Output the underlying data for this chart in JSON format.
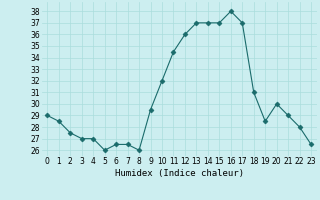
{
  "x": [
    0,
    1,
    2,
    3,
    4,
    5,
    6,
    7,
    8,
    9,
    10,
    11,
    12,
    13,
    14,
    15,
    16,
    17,
    18,
    19,
    20,
    21,
    22,
    23
  ],
  "y": [
    29,
    28.5,
    27.5,
    27,
    27,
    26,
    26.5,
    26.5,
    26,
    29.5,
    32,
    34.5,
    36,
    37,
    37,
    37,
    38,
    37,
    31,
    28.5,
    30,
    29,
    28,
    26.5
  ],
  "xlabel": "Humidex (Indice chaleur)",
  "ylim": [
    25.5,
    38.8
  ],
  "xlim": [
    -0.5,
    23.5
  ],
  "yticks": [
    26,
    27,
    28,
    29,
    30,
    31,
    32,
    33,
    34,
    35,
    36,
    37,
    38
  ],
  "xticks": [
    0,
    1,
    2,
    3,
    4,
    5,
    6,
    7,
    8,
    9,
    10,
    11,
    12,
    13,
    14,
    15,
    16,
    17,
    18,
    19,
    20,
    21,
    22,
    23
  ],
  "line_color": "#1a6b6b",
  "marker": "D",
  "marker_size": 2.5,
  "bg_color": "#cceef0",
  "grid_color": "#aadddd",
  "label_fontsize": 6.5,
  "tick_fontsize": 5.5
}
